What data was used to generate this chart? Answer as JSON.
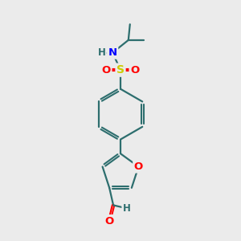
{
  "background_color": "#ebebeb",
  "bond_color": "#2d6e6e",
  "atom_colors": {
    "O": "#ff0000",
    "N": "#0000ff",
    "S": "#cccc00",
    "H": "#2d6e6e",
    "C": "#2d6e6e"
  },
  "figsize": [
    3.0,
    3.0
  ],
  "dpi": 100
}
